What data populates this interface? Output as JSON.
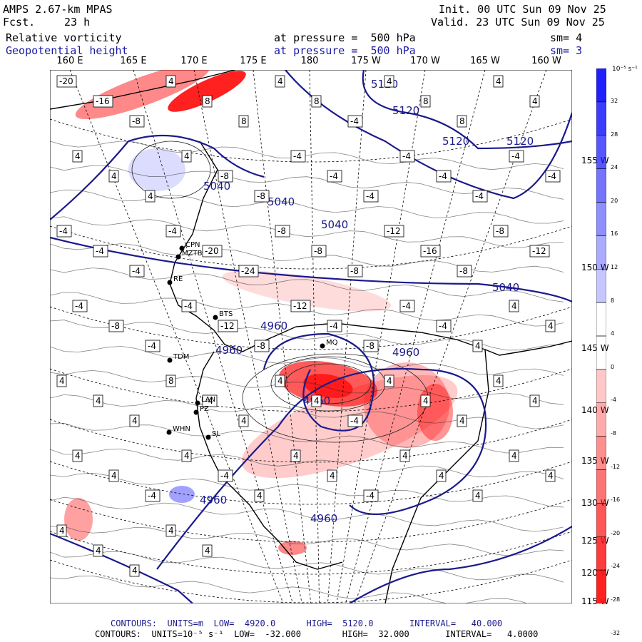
{
  "header": {
    "model": "AMPS 2.67-km MPAS",
    "init": "Init. 00 UTC Sun 09 Nov 25",
    "fcst_label": "Fcst.",
    "fcst_value": "23 h",
    "valid": "Valid. 23 UTC Sun 09 Nov 25",
    "field1": "Relative vorticity",
    "field1_level": "at pressure =  500 hPa",
    "field1_sm": "sm= 4",
    "field2": "Geopotential height",
    "field2_level": "at pressure =  500 hPa",
    "field2_sm": "sm= 3"
  },
  "lon_labels": [
    "160 E",
    "165 E",
    "170 E",
    "175 E",
    "180",
    "175 W",
    "170 W",
    "165 W",
    "160 W"
  ],
  "lat_labels": [
    "155 W",
    "150 W",
    "145 W",
    "140 W",
    "135 W",
    "130 W",
    "125 W",
    "120 W",
    "115 W"
  ],
  "colorbar": {
    "title": "10⁻⁵ s⁻¹",
    "ticks": [
      "32",
      "28",
      "24",
      "20",
      "16",
      "12",
      "8",
      "4",
      "0",
      "-4",
      "-8",
      "-12",
      "-16",
      "-20",
      "-24",
      "-28",
      "-32"
    ],
    "positive_color": "#1414ff",
    "negative_color": "#ff1414"
  },
  "height_contours": {
    "labels": [
      "5120",
      "5120",
      "5120",
      "5120",
      "5040",
      "5040",
      "5040",
      "5040",
      "4960",
      "4960",
      "4960",
      "4960",
      "4960",
      "4960"
    ],
    "line_color": "#1a1a8c"
  },
  "vorticity_labels": [
    "-20",
    "-16",
    "-8",
    "4",
    "8",
    "8",
    "4",
    "8",
    "-4",
    "4",
    "8",
    "8",
    "4",
    "4",
    "4",
    "4",
    "4",
    "4",
    "-8",
    "-8",
    "-4",
    "-4",
    "-4",
    "-4",
    "-4",
    "-4",
    "-4",
    "-4",
    "-4",
    "-4",
    "-4",
    "-4",
    "-20",
    "-24",
    "-8",
    "-8",
    "-8",
    "-12",
    "-16",
    "-8",
    "-8",
    "-12",
    "-4",
    "-8",
    "-4",
    "-4",
    "-12",
    "-8",
    "-12",
    "-4",
    "-8",
    "-4",
    "-4",
    "4",
    "4",
    "4",
    "4",
    "4",
    "4",
    "8",
    "-4",
    "4",
    "4",
    "4",
    "-4",
    "4",
    "4",
    "4",
    "4",
    "4",
    "4",
    "4",
    "-4",
    "4",
    "-4",
    "4",
    "4",
    "4",
    "-4",
    "4",
    "4",
    "4",
    "4",
    "4",
    "4",
    "4",
    "4",
    "4",
    "4"
  ],
  "stations": [
    "CPN",
    "MZTB",
    "RE",
    "BTS",
    "MQ",
    "TDM",
    "LAN",
    "WHN",
    "SL",
    "PZ"
  ],
  "footer": {
    "line1": "CONTOURS:  UNITS=m  LOW=  4920.0      HIGH=  5120.0       INTERVAL=   40.000",
    "line2": "CONTOURS:  UNITS=10⁻⁵ s⁻¹  LOW=  -32.000        HIGH=  32.000       INTERVAL=   4.0000"
  }
}
